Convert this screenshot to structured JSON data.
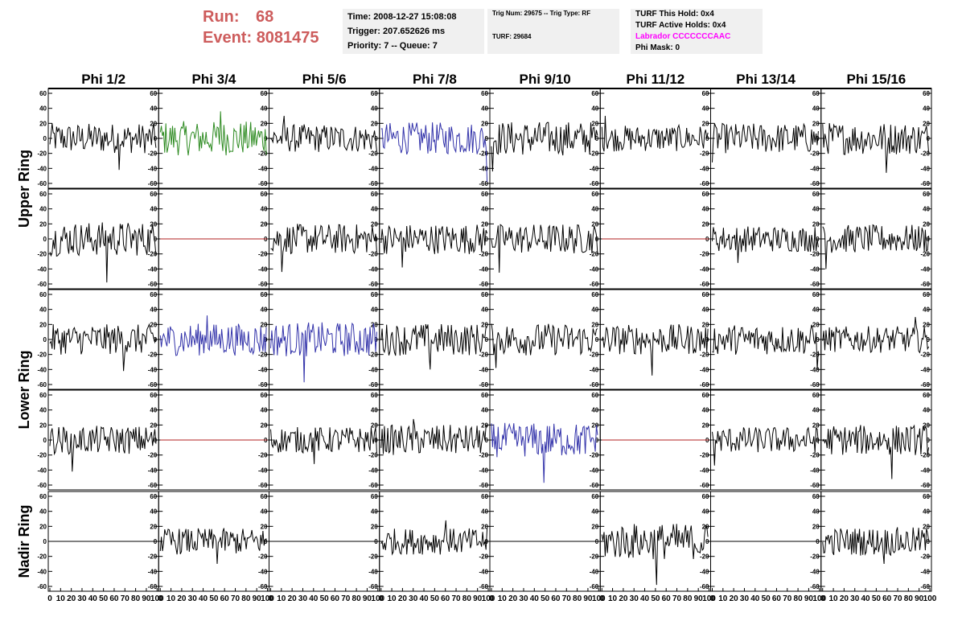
{
  "header": {
    "run_label": "Run:",
    "run_value": "68",
    "event_label": "Event:",
    "event_value": "8081475",
    "time_line": "Time: 2008-12-27 15:08:08",
    "trigger_line": "Trigger: 207.652626 ms",
    "priority_line": "Priority: 7 -- Queue: 7",
    "trig_line": "Trig Num: 29675 -- Trig Type: RF",
    "turf_line": "TURF: 29684",
    "turf_this_hold": "TURF This Hold: 0x4",
    "turf_active_holds": "TURF Active Holds: 0x4",
    "labrador": "Labrador CCCCCCCAAC",
    "phi_mask": "Phi Mask: 0",
    "colors": {
      "run": "#cd5c5c",
      "labrador": "#ff00ff",
      "box_bg": "#f0f0f0"
    }
  },
  "chart_data": {
    "type": "line",
    "layout": "grid",
    "columns": [
      "Phi 1/2",
      "Phi 3/4",
      "Phi 5/6",
      "Phi 7/8",
      "Phi 9/10",
      "Phi 11/12",
      "Phi 13/14",
      "Phi 15/16"
    ],
    "rows": [
      "Upper Ring",
      "Upper Ring",
      "Lower Ring",
      "Lower Ring",
      "Nadir Ring"
    ],
    "row_groups": [
      {
        "label": "Upper Ring",
        "rows": [
          0,
          1
        ]
      },
      {
        "label": "Lower Ring",
        "rows": [
          2,
          3
        ]
      },
      {
        "label": "Nadir Ring",
        "rows": [
          4
        ]
      }
    ],
    "xlim": [
      0,
      100
    ],
    "ylim": [
      -60,
      60
    ],
    "x_ticks": [
      0,
      10,
      20,
      30,
      40,
      50,
      60,
      70,
      80,
      90,
      100
    ],
    "x_tick_labels": [
      "0",
      "10",
      "20",
      "30",
      "40",
      "50",
      "60",
      "70",
      "80",
      "90",
      "100"
    ],
    "y_ticks": [
      -60,
      -40,
      -20,
      0,
      20,
      40,
      60
    ],
    "y_tick_labels": [
      "-60",
      "-40",
      "-20",
      "0",
      "20",
      "40",
      "60"
    ],
    "colors": {
      "normal": "#000000",
      "triggered_l1": "#2e8b22",
      "triggered": "#3333aa",
      "flat": "#b22222"
    },
    "waveform_samples": 96,
    "panels": [
      [
        {
          "state": "normal",
          "amplitude": 15,
          "spike": -42
        },
        {
          "state": "triggered_l1",
          "amplitude": 17,
          "spike": 36
        },
        {
          "state": "normal",
          "amplitude": 14,
          "spike": 30
        },
        {
          "state": "triggered",
          "amplitude": 16,
          "spike": -58
        },
        {
          "state": "normal",
          "amplitude": 17,
          "spike": -44
        },
        {
          "state": "normal",
          "amplitude": 13,
          "spike": 30
        },
        {
          "state": "normal",
          "amplitude": 15,
          "spike": -32
        },
        {
          "state": "normal",
          "amplitude": 16,
          "spike": -46
        }
      ],
      [
        {
          "state": "normal",
          "amplitude": 17,
          "spike": -58
        },
        {
          "state": "flat",
          "amplitude": 0,
          "spike": 0
        },
        {
          "state": "normal",
          "amplitude": 15,
          "spike": -44
        },
        {
          "state": "normal",
          "amplitude": 15,
          "spike": -38
        },
        {
          "state": "normal",
          "amplitude": 15,
          "spike": -45
        },
        {
          "state": "flat",
          "amplitude": 0,
          "spike": 0
        },
        {
          "state": "normal",
          "amplitude": 13,
          "spike": -32
        },
        {
          "state": "normal",
          "amplitude": 14,
          "spike": -40
        }
      ],
      [
        {
          "state": "normal",
          "amplitude": 15,
          "spike": -42
        },
        {
          "state": "triggered",
          "amplitude": 16,
          "spike": 32
        },
        {
          "state": "triggered",
          "amplitude": 17,
          "spike": -57
        },
        {
          "state": "normal",
          "amplitude": 16,
          "spike": -40
        },
        {
          "state": "normal",
          "amplitude": 16,
          "spike": -38
        },
        {
          "state": "normal",
          "amplitude": 15,
          "spike": -48
        },
        {
          "state": "normal",
          "amplitude": 15,
          "spike": -40
        },
        {
          "state": "normal",
          "amplitude": 13,
          "spike": 30
        }
      ],
      [
        {
          "state": "normal",
          "amplitude": 14,
          "spike": -42
        },
        {
          "state": "flat",
          "amplitude": 0,
          "spike": 0
        },
        {
          "state": "normal",
          "amplitude": 13,
          "spike": -32
        },
        {
          "state": "normal",
          "amplitude": 15,
          "spike": 28
        },
        {
          "state": "triggered",
          "amplitude": 17,
          "spike": -57
        },
        {
          "state": "flat",
          "amplitude": 0,
          "spike": 0
        },
        {
          "state": "normal",
          "amplitude": 13,
          "spike": -34
        },
        {
          "state": "normal",
          "amplitude": 15,
          "spike": -52
        }
      ],
      [
        {
          "state": "flat_black",
          "amplitude": 0,
          "spike": 0
        },
        {
          "state": "normal",
          "amplitude": 13,
          "spike": -30
        },
        {
          "state": "flat_black",
          "amplitude": 0,
          "spike": 0
        },
        {
          "state": "normal",
          "amplitude": 13,
          "spike": 28
        },
        {
          "state": "flat_black",
          "amplitude": 0,
          "spike": 0
        },
        {
          "state": "normal",
          "amplitude": 18,
          "spike": -58
        },
        {
          "state": "flat_black",
          "amplitude": 0,
          "spike": 0
        },
        {
          "state": "normal",
          "amplitude": 14,
          "spike": -30
        }
      ]
    ]
  }
}
